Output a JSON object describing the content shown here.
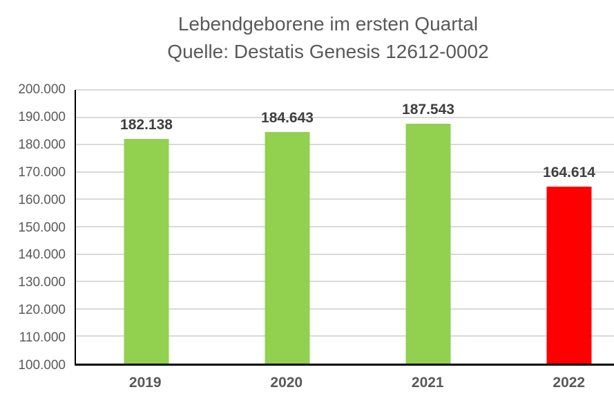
{
  "chart_data": {
    "type": "bar",
    "title": "Lebendgeborene im ersten Quartal",
    "subtitle": "Quelle: Destatis Genesis 12612-0002",
    "categories": [
      "2019",
      "2020",
      "2021",
      "2022"
    ],
    "values": [
      182138,
      184643,
      187543,
      164614
    ],
    "value_labels": [
      "182.138",
      "184.643",
      "187.543",
      "164.614"
    ],
    "bar_colors": [
      "#92D050",
      "#92D050",
      "#92D050",
      "#FF0000"
    ],
    "ylim": [
      100000,
      200000
    ],
    "ytick_step": 10000,
    "ytick_labels": [
      "100.000",
      "110.000",
      "120.000",
      "130.000",
      "140.000",
      "150.000",
      "160.000",
      "170.000",
      "180.000",
      "190.000",
      "200.000"
    ],
    "xlabel": "",
    "ylabel": "",
    "grid": true,
    "legend": "none",
    "colors": {
      "title": "#595959",
      "axis_label": "#595959",
      "value_label": "#3F3F3F",
      "gridline": "#D9D9D9",
      "axis_line": "#000000",
      "background": "#FFFFFF",
      "bar_green": "#92D050",
      "bar_red": "#FF0000"
    }
  }
}
